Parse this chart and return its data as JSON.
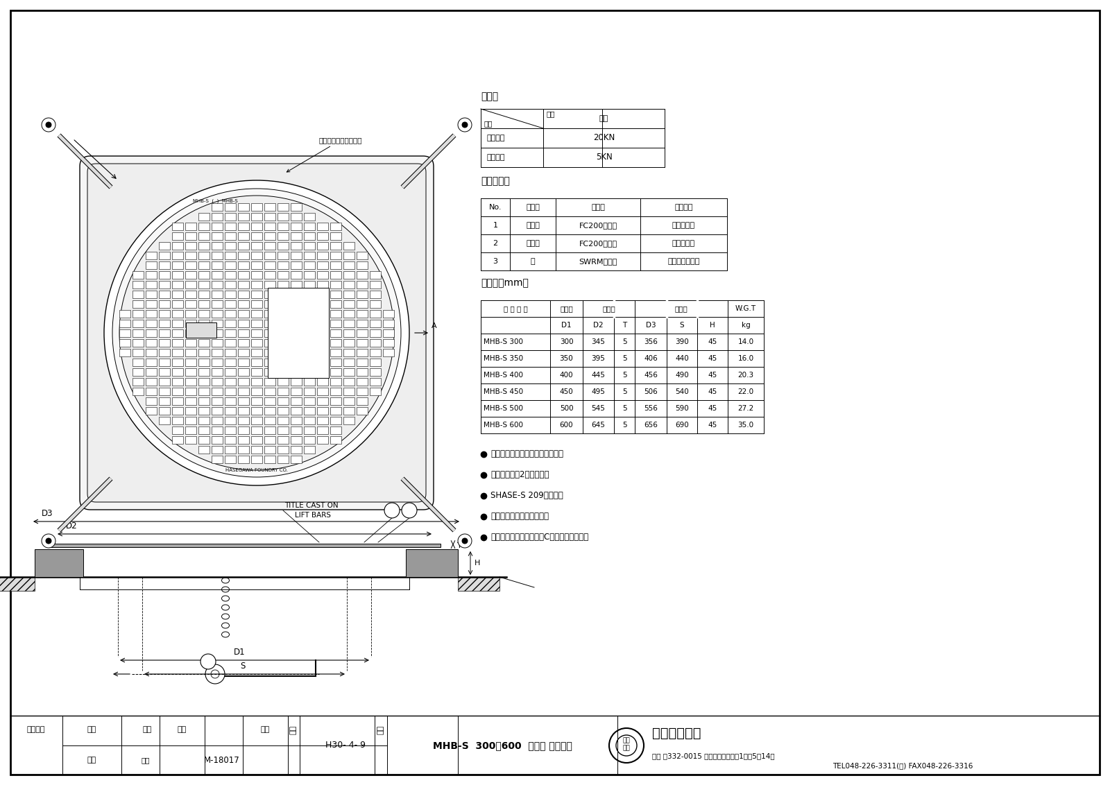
{
  "title": "MHB-S  300～600  汚水蓋 文字入り",
  "date": "H30- 4- 9",
  "drawing_no": "M-18017",
  "company_name": "長谷川鑄工所",
  "company_type": "株式会社",
  "address": "本社 〒332-0015 埼玉県川口市川口1丁目5番14号",
  "tel": "TEL048-226-3311(代) FAX048-226-3316",
  "top_note": "呼び径が記車されます",
  "load_title": "耐荷重",
  "load_header_kind": "種類",
  "load_header_mat": "材質",
  "load_header_castron": "鑄鉄",
  "load_rows": [
    [
      "破壊荷重",
      "20KN"
    ],
    [
      "安全荷重",
      "5KN"
    ]
  ],
  "parts_title": "構成部品表",
  "parts_headers": [
    "No.",
    "部品名",
    "材　質",
    "表面処理"
  ],
  "parts_rows": [
    [
      "1",
      "ふ　た",
      "FC200　鑄鉄",
      "锈止め塗装"
    ],
    [
      "2",
      "受　枝",
      "FC200　鑄鉄",
      "锈止め塗装"
    ],
    [
      "3",
      "鍵",
      "SWRM　丸銅",
      "電気亜鉦めっき"
    ]
  ],
  "dim_title": "寸法表（mm）",
  "dim_col1": "製 品 符 号",
  "dim_col2": "有効径",
  "dim_col3": "ふ　た",
  "dim_col4": "受　枝",
  "dim_col5": "W.G.T",
  "dim_subheaders": [
    "D1",
    "D2",
    "T",
    "D3",
    "S",
    "H",
    "kg"
  ],
  "dim_rows": [
    [
      "MHB-S 300",
      "300",
      "345",
      "5",
      "356",
      "390",
      "45",
      "14.0"
    ],
    [
      "MHB-S 350",
      "350",
      "395",
      "5",
      "406",
      "440",
      "45",
      "16.0"
    ],
    [
      "MHB-S 400",
      "400",
      "445",
      "5",
      "456",
      "490",
      "45",
      "20.3"
    ],
    [
      "MHB-S 450",
      "450",
      "495",
      "5",
      "506",
      "540",
      "45",
      "22.0"
    ],
    [
      "MHB-S 500",
      "500",
      "545",
      "5",
      "556",
      "590",
      "45",
      "27.2"
    ],
    [
      "MHB-S 600",
      "600",
      "645",
      "5",
      "656",
      "690",
      "45",
      "35.0"
    ]
  ],
  "bullets": [
    "角座型受枝及び盗難防止用鍵付。",
    "取手の個数は2ヶ所です。",
    "SHASE-S 209相当品。",
    "公共建築協会評価対象品。",
    "ふたの開閉にはハンドルCをご使用下さい。"
  ],
  "tb_seizu": "製図",
  "tb_kakuzu": "核図",
  "tb_shakudo": "尺度",
  "tb_zuhan": "図番",
  "tb_nichizuki": "日付",
  "tb_meisho": "名称",
  "tb_maker_seizu": "武中",
  "tb_maker_kakuzu": "武中",
  "tb_goiraisaki": "御依頼先",
  "bg_color": "#ffffff",
  "line_color": "#000000"
}
